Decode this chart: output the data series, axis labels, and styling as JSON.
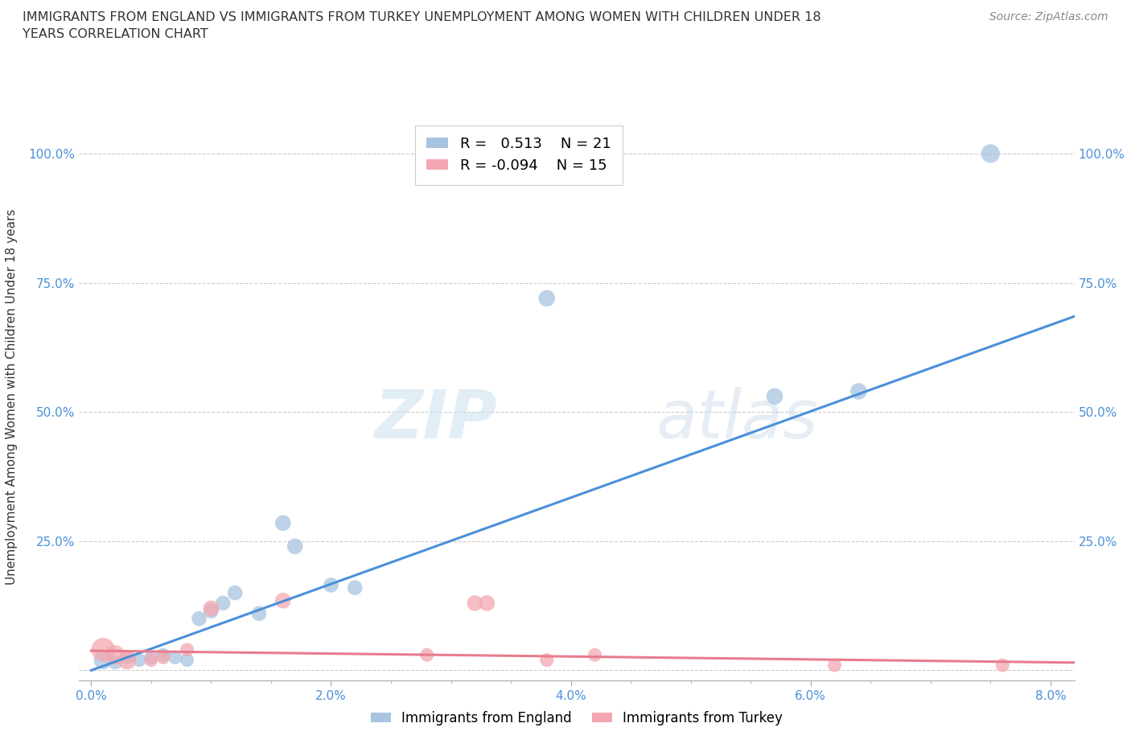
{
  "title_line1": "IMMIGRANTS FROM ENGLAND VS IMMIGRANTS FROM TURKEY UNEMPLOYMENT AMONG WOMEN WITH CHILDREN UNDER 18",
  "title_line2": "YEARS CORRELATION CHART",
  "source": "Source: ZipAtlas.com",
  "ylabel": "Unemployment Among Women with Children Under 18 years",
  "xlim": [
    -0.001,
    0.082
  ],
  "ylim": [
    -0.02,
    1.08
  ],
  "xticks": [
    0.0,
    0.02,
    0.04,
    0.06,
    0.08
  ],
  "xtick_labels": [
    "0.0%",
    "2.0%",
    "4.0%",
    "6.0%",
    "8.0%"
  ],
  "yticks": [
    0.0,
    0.25,
    0.5,
    0.75,
    1.0
  ],
  "ytick_labels_left": [
    "",
    "25.0%",
    "50.0%",
    "75.0%",
    "100.0%"
  ],
  "ytick_labels_right": [
    "",
    "25.0%",
    "50.0%",
    "75.0%",
    "100.0%"
  ],
  "england_R": 0.513,
  "england_N": 21,
  "turkey_R": -0.094,
  "turkey_N": 15,
  "england_color": "#a8c4e0",
  "turkey_color": "#f4a7b0",
  "england_line_color": "#4a90d9",
  "turkey_line_color": "#e87c8d",
  "watermark_zip": "ZIP",
  "watermark_atlas": "atlas",
  "england_x": [
    0.001,
    0.002,
    0.003,
    0.004,
    0.005,
    0.006,
    0.007,
    0.008,
    0.009,
    0.01,
    0.011,
    0.012,
    0.014,
    0.016,
    0.017,
    0.02,
    0.022,
    0.038,
    0.057,
    0.064,
    0.075
  ],
  "england_y": [
    0.02,
    0.015,
    0.025,
    0.02,
    0.025,
    0.03,
    0.025,
    0.02,
    0.1,
    0.115,
    0.13,
    0.15,
    0.11,
    0.285,
    0.24,
    0.165,
    0.16,
    0.72,
    0.53,
    0.54,
    1.0
  ],
  "turkey_x": [
    0.001,
    0.002,
    0.003,
    0.005,
    0.006,
    0.008,
    0.01,
    0.016,
    0.028,
    0.032,
    0.033,
    0.038,
    0.042,
    0.062,
    0.076
  ],
  "turkey_y": [
    0.04,
    0.03,
    0.02,
    0.02,
    0.025,
    0.04,
    0.12,
    0.135,
    0.03,
    0.13,
    0.13,
    0.02,
    0.03,
    0.01,
    0.01
  ],
  "england_sizes": [
    280,
    150,
    150,
    150,
    150,
    150,
    150,
    150,
    180,
    180,
    180,
    180,
    180,
    200,
    200,
    180,
    180,
    220,
    220,
    220,
    280
  ],
  "turkey_sizes": [
    450,
    300,
    280,
    150,
    150,
    150,
    200,
    200,
    150,
    200,
    200,
    150,
    150,
    150,
    150
  ],
  "england_trend_x": [
    0.0,
    0.082
  ],
  "england_trend_y": [
    0.0,
    0.685
  ],
  "turkey_trend_x": [
    0.0,
    0.082
  ],
  "turkey_trend_y": [
    0.038,
    0.015
  ]
}
